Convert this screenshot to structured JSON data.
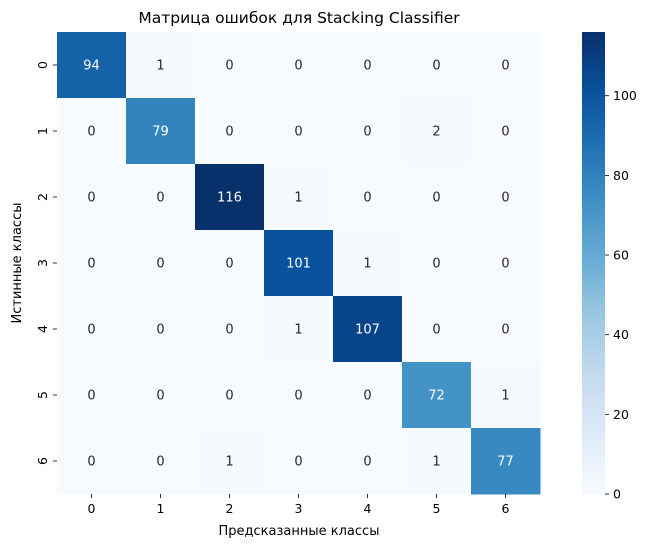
{
  "chart_data": {
    "type": "heatmap",
    "title": "Матрица ошибок для Stacking Classifier",
    "xlabel": "Предсказанные классы",
    "ylabel": "Истинные классы",
    "x_categories": [
      "0",
      "1",
      "2",
      "3",
      "4",
      "5",
      "6"
    ],
    "y_categories": [
      "0",
      "1",
      "2",
      "3",
      "4",
      "5",
      "6"
    ],
    "values": [
      [
        94,
        1,
        0,
        0,
        0,
        0,
        0
      ],
      [
        0,
        79,
        0,
        0,
        0,
        2,
        0
      ],
      [
        0,
        0,
        116,
        1,
        0,
        0,
        0
      ],
      [
        0,
        0,
        0,
        101,
        1,
        0,
        0
      ],
      [
        0,
        0,
        0,
        1,
        107,
        0,
        0
      ],
      [
        0,
        0,
        0,
        0,
        0,
        72,
        1
      ],
      [
        0,
        0,
        1,
        0,
        0,
        1,
        77
      ]
    ],
    "colormap": "Blues",
    "value_range": [
      0,
      116
    ],
    "colorbar": {
      "ticks": [
        0,
        20,
        40,
        60,
        80,
        100
      ],
      "tick_labels": [
        "0",
        "20",
        "40",
        "60",
        "80",
        "100"
      ]
    },
    "annotations_shown": true
  }
}
